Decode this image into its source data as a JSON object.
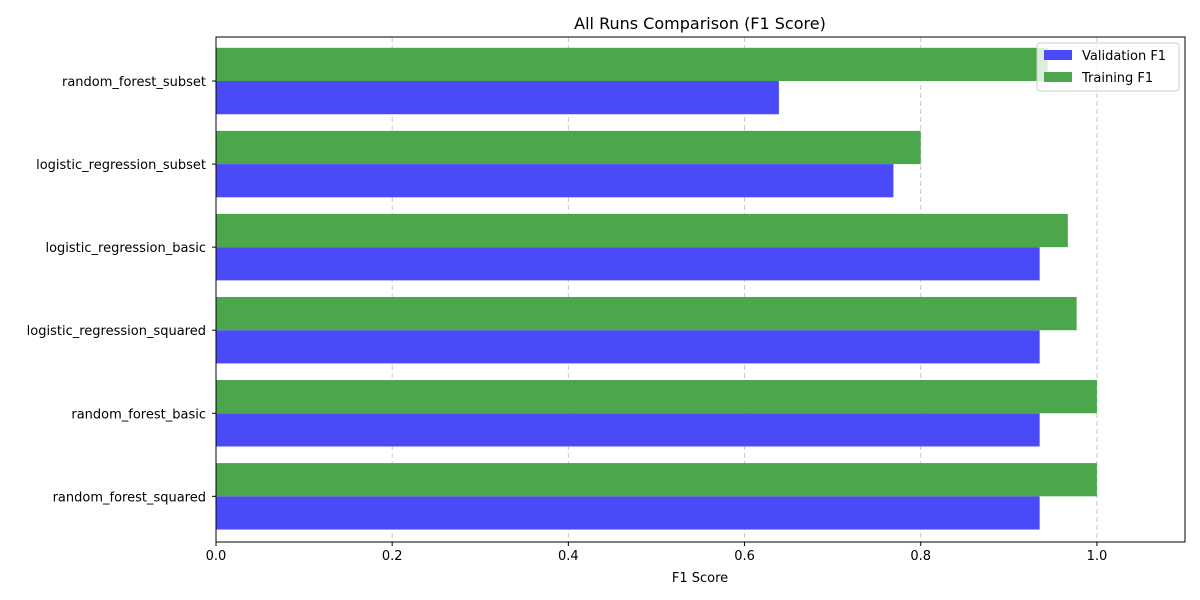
{
  "chart_data": {
    "type": "bar",
    "orientation": "horizontal",
    "title": "All Runs Comparison (F1 Score)",
    "xlabel": "F1 Score",
    "ylabel": "",
    "xlim": [
      0,
      1.1
    ],
    "xticks": [
      "0.0",
      "0.2",
      "0.4",
      "0.6",
      "0.8",
      "1.0"
    ],
    "grid": "x-axis dashed",
    "legend_position": "top-right",
    "categories": [
      "random_forest_squared",
      "random_forest_basic",
      "logistic_regression_squared",
      "logistic_regression_basic",
      "logistic_regression_subset",
      "random_forest_subset"
    ],
    "series": [
      {
        "name": "Validation F1",
        "color": "#4a4af8",
        "values": [
          0.935,
          0.935,
          0.935,
          0.935,
          0.769,
          0.639
        ]
      },
      {
        "name": "Training F1",
        "color": "#4ca64c",
        "values": [
          1.0,
          1.0,
          0.977,
          0.967,
          0.8,
          0.944
        ]
      }
    ]
  }
}
